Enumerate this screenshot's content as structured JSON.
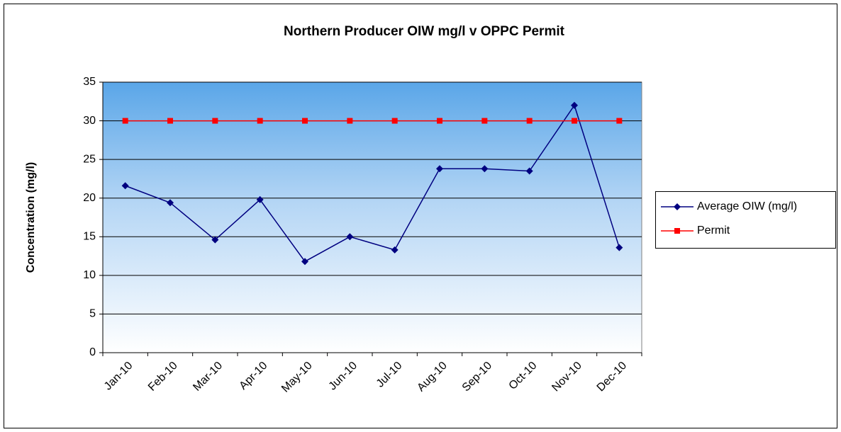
{
  "chart_data": {
    "type": "line",
    "title": "Northern Producer OIW  mg/l v OPPC Permit",
    "y_label": "Concentration (mg/l)",
    "categories": [
      "Jan-10",
      "Feb-10",
      "Mar-10",
      "Apr-10",
      "May-10",
      "Jun-10",
      "Jul-10",
      "Aug-10",
      "Sep-10",
      "Oct-10",
      "Nov-10",
      "Dec-10"
    ],
    "series": [
      {
        "name": "Average OIW (mg/l)",
        "color": "#000080",
        "marker": "diamond",
        "values": [
          21.6,
          19.4,
          14.6,
          19.8,
          11.8,
          15.0,
          13.3,
          23.8,
          23.8,
          23.5,
          32.0,
          13.6
        ]
      },
      {
        "name": "Permit",
        "color": "#ff0000",
        "marker": "square",
        "values": [
          30,
          30,
          30,
          30,
          30,
          30,
          30,
          30,
          30,
          30,
          30,
          30
        ]
      }
    ],
    "ylim": [
      0,
      35
    ],
    "yticks": [
      0,
      5,
      10,
      15,
      20,
      25,
      30,
      35
    ],
    "grid": true,
    "legend": "right"
  }
}
